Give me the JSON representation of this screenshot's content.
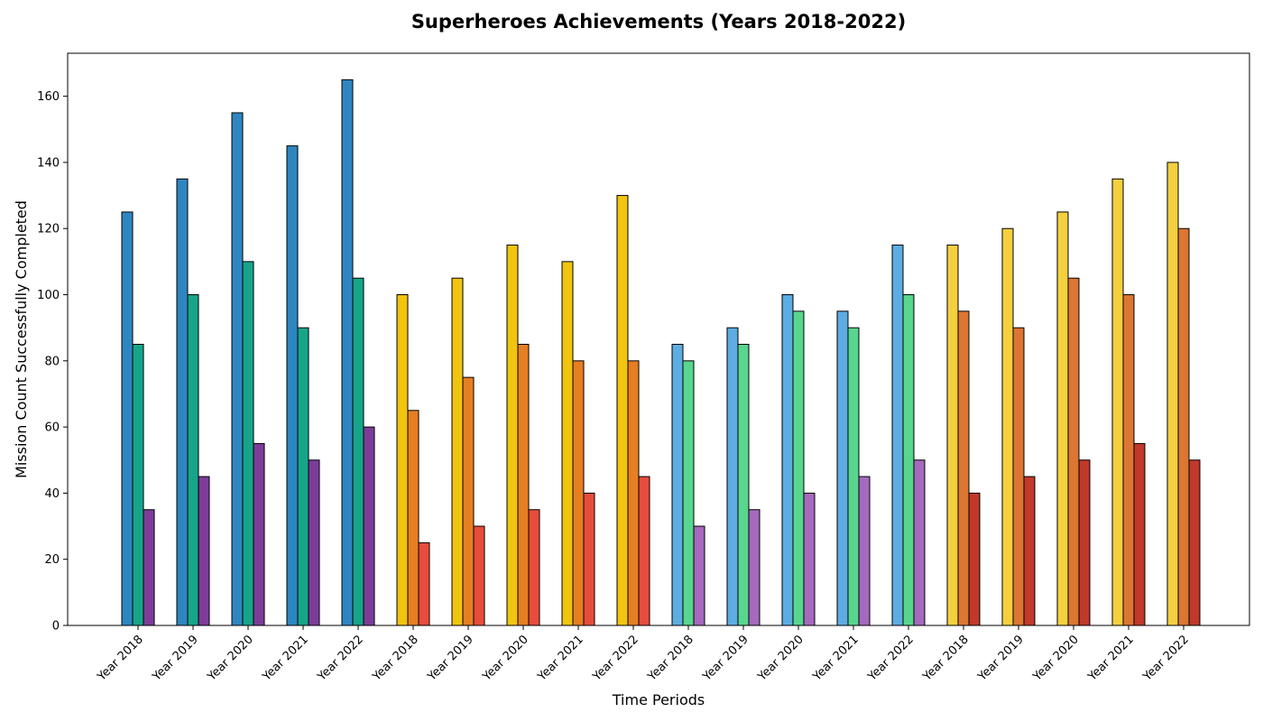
{
  "chart_data": {
    "type": "bar",
    "title": "Superheroes Achievements (Years 2018-2022)",
    "xlabel": "Time Periods",
    "ylabel": "Mission Count Successfully Completed",
    "ylim": [
      0,
      173
    ],
    "yticks": [
      0,
      20,
      40,
      60,
      80,
      100,
      120,
      140,
      160
    ],
    "categories": [
      "Year 2018",
      "Year 2019",
      "Year 2020",
      "Year 2021",
      "Year 2022",
      "Year 2018",
      "Year 2019",
      "Year 2020",
      "Year 2021",
      "Year 2022",
      "Year 2018",
      "Year 2019",
      "Year 2020",
      "Year 2021",
      "Year 2022",
      "Year 2018",
      "Year 2019",
      "Year 2020",
      "Year 2021",
      "Year 2022"
    ],
    "groups": [
      {
        "colors": [
          "#2e86c1",
          "#17a589",
          "#7d3c98"
        ],
        "values": [
          [
            125,
            85,
            35
          ],
          [
            135,
            100,
            45
          ],
          [
            155,
            110,
            55
          ],
          [
            145,
            90,
            50
          ],
          [
            165,
            105,
            60
          ]
        ]
      },
      {
        "colors": [
          "#f1c40f",
          "#e67e22",
          "#e74c3c"
        ],
        "values": [
          [
            100,
            65,
            25
          ],
          [
            105,
            75,
            30
          ],
          [
            115,
            85,
            35
          ],
          [
            110,
            80,
            40
          ],
          [
            130,
            80,
            45
          ]
        ]
      },
      {
        "colors": [
          "#5dade2",
          "#58d68d",
          "#a569bd"
        ],
        "values": [
          [
            85,
            80,
            30
          ],
          [
            90,
            85,
            35
          ],
          [
            100,
            95,
            40
          ],
          [
            95,
            90,
            45
          ],
          [
            115,
            100,
            50
          ]
        ]
      },
      {
        "colors": [
          "#f4d03f",
          "#dc7633",
          "#c0392b"
        ],
        "values": [
          [
            115,
            95,
            40
          ],
          [
            120,
            90,
            45
          ],
          [
            125,
            105,
            50
          ],
          [
            135,
            100,
            55
          ],
          [
            140,
            120,
            50
          ]
        ]
      }
    ],
    "grid": false,
    "legend": "none"
  }
}
